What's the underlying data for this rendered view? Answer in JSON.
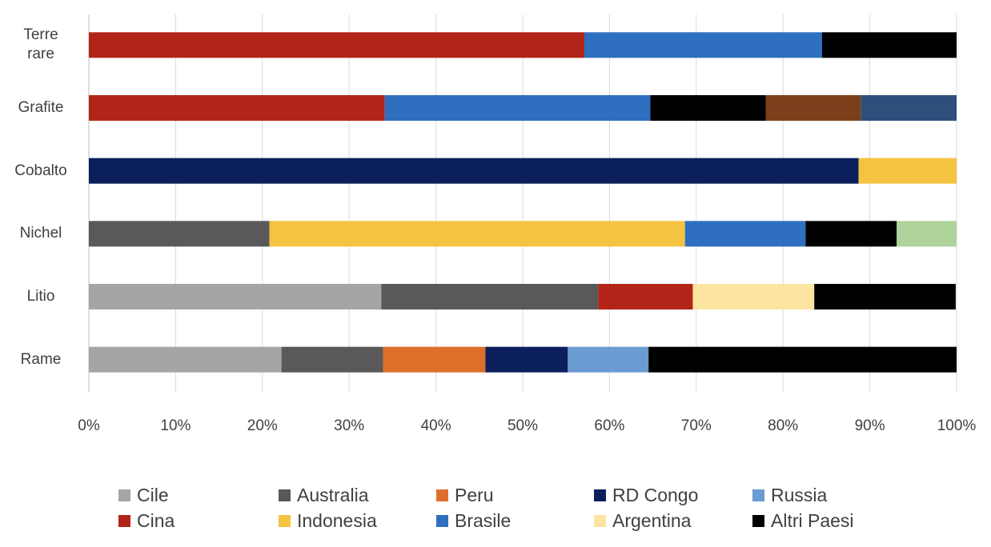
{
  "chart_data": {
    "type": "bar",
    "orientation": "horizontal",
    "stacked": "percent",
    "categories": [
      "Terre rare",
      "Grafite",
      "Cobalto",
      "Nichel",
      "Litio",
      "Rame"
    ],
    "xlim": [
      0,
      100
    ],
    "xticks": [
      "0%",
      "10%",
      "20%",
      "30%",
      "40%",
      "50%",
      "60%",
      "70%",
      "80%",
      "90%",
      "100%"
    ],
    "grid": "vertical",
    "legend_position": "bottom",
    "series": [
      {
        "name": "Cile",
        "color": "#a5a5a5",
        "in_legend": true,
        "values": [
          0,
          0,
          0,
          0,
          33.7,
          22.2
        ]
      },
      {
        "name": "Australia",
        "color": "#595959",
        "in_legend": true,
        "values": [
          0,
          0,
          0,
          20.8,
          25.0,
          11.7
        ]
      },
      {
        "name": "Peru",
        "color": "#dd6f2b",
        "in_legend": true,
        "values": [
          0,
          0,
          0,
          0,
          0,
          11.8
        ]
      },
      {
        "name": "RD Congo",
        "color": "#0b1f5c",
        "in_legend": true,
        "values": [
          0,
          0,
          88.7,
          0,
          0,
          9.5
        ]
      },
      {
        "name": "Russia",
        "color": "#6a9bd1",
        "in_legend": true,
        "values": [
          0,
          0,
          0,
          0,
          0,
          9.3
        ]
      },
      {
        "name": "Cina",
        "color": "#b22418",
        "in_legend": true,
        "values": [
          57.1,
          34.1,
          0,
          0,
          10.9,
          0
        ]
      },
      {
        "name": "Indonesia",
        "color": "#f5c342",
        "in_legend": true,
        "values": [
          0,
          0,
          11.3,
          47.9,
          0,
          0
        ]
      },
      {
        "name": "Brasile",
        "color": "#2e6fbf",
        "in_legend": true,
        "values": [
          27.4,
          30.6,
          0,
          13.9,
          0,
          0
        ]
      },
      {
        "name": "Argentina",
        "color": "#fbe5a0",
        "in_legend": true,
        "values": [
          0,
          0,
          0,
          0,
          14.0,
          0
        ]
      },
      {
        "name": "Altri Paesi",
        "color": "#000000",
        "in_legend": true,
        "values": [
          15.5,
          13.3,
          0,
          10.5,
          16.3,
          35.5
        ]
      },
      {
        "name": "",
        "color": "#7c3f1b",
        "in_legend": false,
        "values": [
          0,
          11.0,
          0,
          0,
          0,
          0
        ]
      },
      {
        "name": "",
        "color": "#2c4f7c",
        "in_legend": false,
        "values": [
          0,
          11.0,
          0,
          0,
          0,
          0
        ]
      },
      {
        "name": "",
        "color": "#b0d29b",
        "in_legend": false,
        "values": [
          0,
          0,
          0,
          6.9,
          0,
          0
        ]
      }
    ]
  }
}
